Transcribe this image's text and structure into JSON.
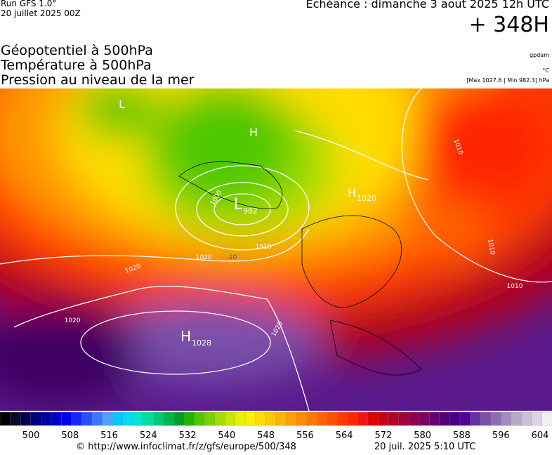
{
  "header": {
    "run": "Run GFS 1.0°",
    "date": "20 juillet 2025 00Z",
    "echeance": "Echéance : dimanche 3 aout 2025 12h UTC",
    "lead": "+ 348H"
  },
  "titles": [
    "Géopotentiel à 500hPa",
    "Température à 500hPa",
    "Pression au niveau de la mer"
  ],
  "units": {
    "geo": "gpdam",
    "temp": "°C",
    "pressure": "[Max 1027.6 | Min 982.3] hPa"
  },
  "map": {
    "centers": [
      {
        "letter": "L",
        "value": "982"
      },
      {
        "letter": "H",
        "value": "1028"
      },
      {
        "letter": "H",
        "value": "1020"
      },
      {
        "letter": "H"
      },
      {
        "letter": "L"
      }
    ],
    "isobar_labels": [
      "1020",
      "1020",
      "1020",
      "1020",
      "1010",
      "1010",
      "1010",
      "1010",
      "1000",
      "-20"
    ]
  },
  "legend": {
    "ticks": [
      500,
      508,
      516,
      524,
      532,
      540,
      548,
      556,
      564,
      572,
      580,
      588,
      596,
      604
    ],
    "colors": [
      "#000000",
      "#0a0a28",
      "#000050",
      "#000078",
      "#0000a0",
      "#0000c8",
      "#0000f0",
      "#1428ff",
      "#2850ff",
      "#3c78ff",
      "#50a0ff",
      "#00c8ff",
      "#00dcf0",
      "#00e6c8",
      "#00dca0",
      "#00c878",
      "#00b450",
      "#00a028",
      "#1eb400",
      "#50c800",
      "#78d200",
      "#a0dc00",
      "#c8e600",
      "#e6f000",
      "#fff000",
      "#ffdc00",
      "#ffc800",
      "#ffb400",
      "#ffa000",
      "#ff8c00",
      "#ff7800",
      "#ff6400",
      "#ff5000",
      "#ff3c00",
      "#ff2800",
      "#f01414",
      "#dc0000",
      "#c80014",
      "#b40028",
      "#a0003c",
      "#8c0050",
      "#780064",
      "#64006e",
      "#500078",
      "#460082",
      "#500096",
      "#6432a0",
      "#7850aa",
      "#8c6eb4",
      "#a08cbe",
      "#b4aac8",
      "#c8c0d8",
      "#dcd4e4",
      "#f0f0f0"
    ]
  },
  "footer": {
    "url": "© http://www.infoclimat.fr/z/gfs/europe/500/348",
    "generated": "20 juil. 2025  5:10 UTC"
  }
}
